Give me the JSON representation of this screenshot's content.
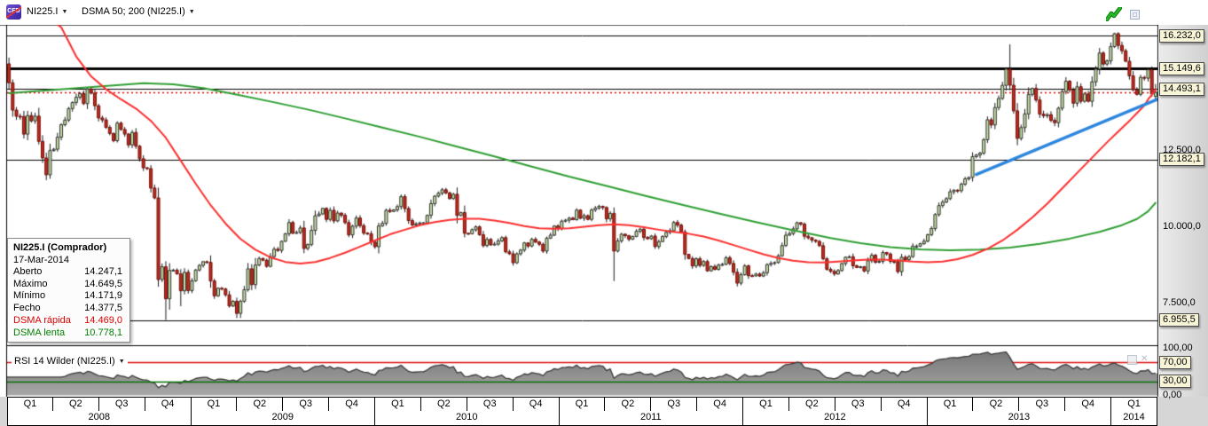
{
  "toolbar": {
    "instrument": "NI225.I",
    "indicator": "DSMA 50; 200 (NI225.I)",
    "icons": [
      "cfd-instrument-icon",
      "quick-trade-flash-icon",
      "restore-window-icon"
    ]
  },
  "tooltip": {
    "title": "NI225.I (Comprador)",
    "date": "17-Mar-2014",
    "rows": [
      {
        "label": "Aberto",
        "value": "14.247,1",
        "color": "#000000"
      },
      {
        "label": "Máximo",
        "value": "14.649,5",
        "color": "#000000"
      },
      {
        "label": "Mínimo",
        "value": "14.171,9",
        "color": "#000000"
      },
      {
        "label": "Fecho",
        "value": "14.377,5",
        "color": "#000000"
      },
      {
        "label": "DSMA rápida",
        "value": "14.469,0",
        "color": "#dd0000"
      },
      {
        "label": "DSMA lenta",
        "value": "10.778,1",
        "color": "#008000"
      }
    ]
  },
  "price_axis": {
    "callouts": [
      {
        "text": "16.232,0",
        "price": 16232.0
      },
      {
        "text": "15.149,6",
        "price": 15149.6
      },
      {
        "text": "14.493,1",
        "price": 14493.1
      },
      {
        "text": "12.182,1",
        "price": 12182.1
      },
      {
        "text": "6.955,5",
        "price": 6955.5
      }
    ],
    "plain_labels": [
      {
        "text": "12.500,0",
        "price": 12500
      },
      {
        "text": "10.000,0",
        "price": 10000
      },
      {
        "text": "7.500,0",
        "price": 7500
      }
    ],
    "tick_step": 500
  },
  "rsi_panel": {
    "label": "RSI 14 Wilder (NI225.I)",
    "callouts": [
      {
        "text": "70,00",
        "value": 70
      },
      {
        "text": "30,00",
        "value": 30
      }
    ],
    "plain_labels": [
      {
        "text": "100,00",
        "value": 100
      },
      {
        "text": "0,00",
        "value": 0
      }
    ]
  },
  "x_axis": {
    "quarters": [
      "Q1",
      "Q2",
      "Q3",
      "Q4",
      "Q1",
      "Q2",
      "Q3",
      "Q4",
      "Q1",
      "Q2",
      "Q3",
      "Q4",
      "Q1",
      "Q2",
      "Q3",
      "Q4",
      "Q1",
      "Q2",
      "Q3",
      "Q4",
      "Q1",
      "Q2",
      "Q3",
      "Q4",
      "Q1"
    ],
    "years": [
      {
        "label": "2008",
        "span": 4
      },
      {
        "label": "2009",
        "span": 4
      },
      {
        "label": "2010",
        "span": 4
      },
      {
        "label": "2011",
        "span": 4
      },
      {
        "label": "2012",
        "span": 4
      },
      {
        "label": "2013",
        "span": 4
      },
      {
        "label": "2014",
        "span": 1
      }
    ]
  },
  "colors": {
    "up_fill": "#c6e2a4",
    "up_border": "#2f2f2f",
    "down_fill": "#c02a1e",
    "down_border": "#6e0f08",
    "wick": "#1a1a1a",
    "sma_fast": "#fb2f2f",
    "sma_slow": "#2f9e33",
    "trendline": "#2e86de",
    "level_line": "#000000",
    "last_price_line": "#e80000",
    "rsi_fill_top": "#747474",
    "rsi_fill_bottom": "#a8a8a8",
    "rsi_outline": "#3a3a3a",
    "rsi_upper_line": "#dd1111",
    "rsi_lower_line": "#067006",
    "callout_bg": "#f8f4d8"
  },
  "chart_data": {
    "type": "candlestick",
    "instrument": "NI225.I",
    "timeframe": "weekly",
    "x_range": [
      "2008-Q1",
      "2014-Q1"
    ],
    "visible_price_range": [
      6130,
      16580
    ],
    "first_open": 15308,
    "closes": [
      14691,
      13800,
      13600,
      13592,
      13017,
      13622,
      13450,
      13603,
      12782,
      12241,
      11691,
      12482,
      12525,
      12917,
      13323,
      13476,
      13850,
      14049,
      14219,
      14338,
      14012,
      14489,
      14354,
      13942,
      13544,
      13481,
      13237,
      13039,
      12803,
      13376,
      13168,
      13019,
      12666,
      13072,
      12624,
      12214,
      11920,
      11893,
      11259,
      10938,
      8276,
      8693,
      7649,
      8576,
      8583,
      8462,
      7910,
      8512,
      7917,
      8235,
      8588,
      8739,
      8859,
      8836,
      8230,
      7745,
      7994,
      7969,
      7779,
      7416,
      7568,
      7173,
      7569,
      7945,
      8626,
      8110,
      8750,
      8964,
      8908,
      8707,
      9026,
      9265,
      9225,
      9523,
      9768,
      10136,
      9786,
      9811,
      9958,
      9288,
      9416,
      9879,
      10357,
      10412,
      10597,
      10238,
      10534,
      10187,
      10444,
      10371,
      10133,
      9732,
      10016,
      10283,
      10035,
      9790,
      9771,
      9497,
      9346,
      10022,
      10108,
      10536,
      10495,
      10546,
      10655,
      10982,
      10591,
      10198,
      10057,
      10092,
      10123,
      10126,
      10369,
      10751,
      10996,
      11090,
      11204,
      11102,
      10914,
      11057,
      10365,
      10462,
      9785,
      9769,
      9901,
      9995,
      9737,
      9383,
      9585,
      9408,
      9431,
      9537,
      9642,
      9179,
      9116,
      8824,
      9114,
      9239,
      9471,
      9369,
      9588,
      9500,
      9427,
      9202,
      9626,
      9724,
      10022,
      9937,
      10178,
      10212,
      10279,
      10229,
      10541,
      10275,
      10360,
      10238,
      10543,
      10605,
      10664,
      10624,
      10254,
      10434,
      9206,
      9536,
      9755,
      9708,
      9591,
      9682,
      9850,
      9918,
      9648,
      9607,
      9694,
      9351,
      9514,
      9678,
      9816,
      9868,
      10138,
      10050,
      9833,
      9097,
      8963,
      8719,
      8955,
      8737,
      8864,
      8560,
      8700,
      8605,
      8748,
      8771,
      8988,
      8801,
      8514,
      8160,
      8435,
      8722,
      8401,
      8395,
      8455,
      8390,
      8500,
      8766,
      8803,
      8831,
      9052,
      9384,
      9723,
      9777,
      9930,
      10130,
      10084,
      9688,
      9638,
      9561,
      9521,
      9380,
      8953,
      8611,
      8543,
      8459,
      8569,
      8798,
      9007,
      9020,
      8724,
      8669,
      8695,
      8555,
      8891,
      9070,
      8840,
      8871,
      9159,
      9110,
      8870,
      8863,
      8534,
      9003,
      8928,
      9024,
      9366,
      9367,
      9446,
      9527,
      9738,
      9940,
      10395,
      10688,
      10801,
      10913,
      11139,
      11191,
      11173,
      11385,
      11559,
      11606,
      12283,
      12338,
      12398,
      12834,
      13485,
      13316,
      13884,
      14180,
      14607,
      15138,
      14612,
      13775,
      12877,
      13230,
      13677,
      14310,
      14506,
      14130,
      13668,
      13615,
      13650,
      13465,
      13389,
      13860,
      14404,
      14742,
      14456,
      14024,
      14562,
      14088,
      14328,
      14086,
      14720,
      15136,
      15662,
      15300,
      15403,
      15870,
      16291,
      15908,
      15734,
      15392,
      14915,
      14462,
      14313,
      14866,
      14841,
      15120,
      14327,
      14377
    ],
    "extremes": {
      "42": {
        "low": 6958
      },
      "46": {
        "low": 7406
      },
      "61": {
        "low": 7021
      },
      "162": {
        "low": 8227
      },
      "268": {
        "high": 15943,
        "low": 14450
      },
      "296": {
        "high": 16320
      },
      "307": {
        "open": 14247.1,
        "high": 14649.5,
        "low": 14171.9,
        "close": 14377.5
      }
    },
    "sma_fast": {
      "name": "DSMA 50",
      "last_value": 14469.0,
      "points": [
        [
          0,
          17600
        ],
        [
          8,
          17000
        ],
        [
          14,
          16500
        ],
        [
          18,
          15550
        ],
        [
          22,
          14900
        ],
        [
          26,
          14480
        ],
        [
          30,
          14150
        ],
        [
          34,
          13850
        ],
        [
          38,
          13450
        ],
        [
          42,
          12900
        ],
        [
          46,
          12150
        ],
        [
          50,
          11400
        ],
        [
          54,
          10700
        ],
        [
          58,
          10100
        ],
        [
          62,
          9600
        ],
        [
          66,
          9250
        ],
        [
          70,
          9000
        ],
        [
          74,
          8850
        ],
        [
          78,
          8800
        ],
        [
          82,
          8850
        ],
        [
          86,
          8980
        ],
        [
          90,
          9150
        ],
        [
          94,
          9350
        ],
        [
          98,
          9550
        ],
        [
          102,
          9750
        ],
        [
          106,
          9900
        ],
        [
          110,
          10050
        ],
        [
          114,
          10150
        ],
        [
          118,
          10220
        ],
        [
          122,
          10260
        ],
        [
          126,
          10260
        ],
        [
          130,
          10200
        ],
        [
          134,
          10120
        ],
        [
          138,
          10020
        ],
        [
          142,
          9950
        ],
        [
          146,
          9930
        ],
        [
          150,
          9950
        ],
        [
          154,
          10000
        ],
        [
          158,
          10050
        ],
        [
          162,
          10080
        ],
        [
          166,
          10050
        ],
        [
          170,
          9980
        ],
        [
          174,
          9900
        ],
        [
          178,
          9830
        ],
        [
          182,
          9770
        ],
        [
          186,
          9680
        ],
        [
          190,
          9550
        ],
        [
          194,
          9400
        ],
        [
          198,
          9250
        ],
        [
          202,
          9100
        ],
        [
          206,
          8980
        ],
        [
          210,
          8890
        ],
        [
          214,
          8840
        ],
        [
          218,
          8830
        ],
        [
          222,
          8860
        ],
        [
          226,
          8900
        ],
        [
          230,
          8930
        ],
        [
          234,
          8930
        ],
        [
          238,
          8900
        ],
        [
          242,
          8860
        ],
        [
          246,
          8840
        ],
        [
          250,
          8860
        ],
        [
          254,
          8940
        ],
        [
          258,
          9080
        ],
        [
          262,
          9280
        ],
        [
          266,
          9550
        ],
        [
          270,
          9900
        ],
        [
          274,
          10300
        ],
        [
          278,
          10750
        ],
        [
          282,
          11250
        ],
        [
          286,
          11750
        ],
        [
          290,
          12250
        ],
        [
          294,
          12750
        ],
        [
          297,
          13100
        ],
        [
          300,
          13450
        ],
        [
          302,
          13700
        ],
        [
          304,
          13950
        ],
        [
          305,
          14150
        ],
        [
          306,
          14300
        ],
        [
          307,
          14469
        ]
      ]
    },
    "sma_slow": {
      "name": "DSMA 200",
      "last_value": 10778.1,
      "points": [
        [
          0,
          14350
        ],
        [
          12,
          14460
        ],
        [
          24,
          14570
        ],
        [
          36,
          14680
        ],
        [
          44,
          14640
        ],
        [
          52,
          14520
        ],
        [
          60,
          14330
        ],
        [
          70,
          14080
        ],
        [
          80,
          13820
        ],
        [
          90,
          13530
        ],
        [
          100,
          13230
        ],
        [
          110,
          12930
        ],
        [
          120,
          12610
        ],
        [
          130,
          12290
        ],
        [
          140,
          11960
        ],
        [
          150,
          11630
        ],
        [
          160,
          11330
        ],
        [
          170,
          11020
        ],
        [
          180,
          10720
        ],
        [
          190,
          10430
        ],
        [
          200,
          10150
        ],
        [
          210,
          9880
        ],
        [
          220,
          9630
        ],
        [
          228,
          9460
        ],
        [
          236,
          9330
        ],
        [
          244,
          9260
        ],
        [
          252,
          9230
        ],
        [
          260,
          9250
        ],
        [
          268,
          9320
        ],
        [
          276,
          9440
        ],
        [
          284,
          9610
        ],
        [
          292,
          9830
        ],
        [
          298,
          10050
        ],
        [
          302,
          10250
        ],
        [
          305,
          10500
        ],
        [
          307,
          10778
        ]
      ]
    },
    "trendline": {
      "from_week": 259,
      "from_price": 11700,
      "to_week": 308,
      "to_price": 14180
    },
    "h_lines": [
      {
        "price": 16232.0,
        "weight": 1
      },
      {
        "price": 15149.6,
        "weight": 3
      },
      {
        "price": 14493.1,
        "weight": 1
      },
      {
        "price": 12182.1,
        "weight": 1
      },
      {
        "price": 6955.5,
        "weight": 1
      }
    ],
    "last_price_line": {
      "price": 14377.5,
      "style": "dotted"
    },
    "rsi": {
      "period": 14,
      "method": "Wilder",
      "upper_level": 70,
      "lower_level": 30,
      "range": [
        0,
        100
      ]
    }
  }
}
